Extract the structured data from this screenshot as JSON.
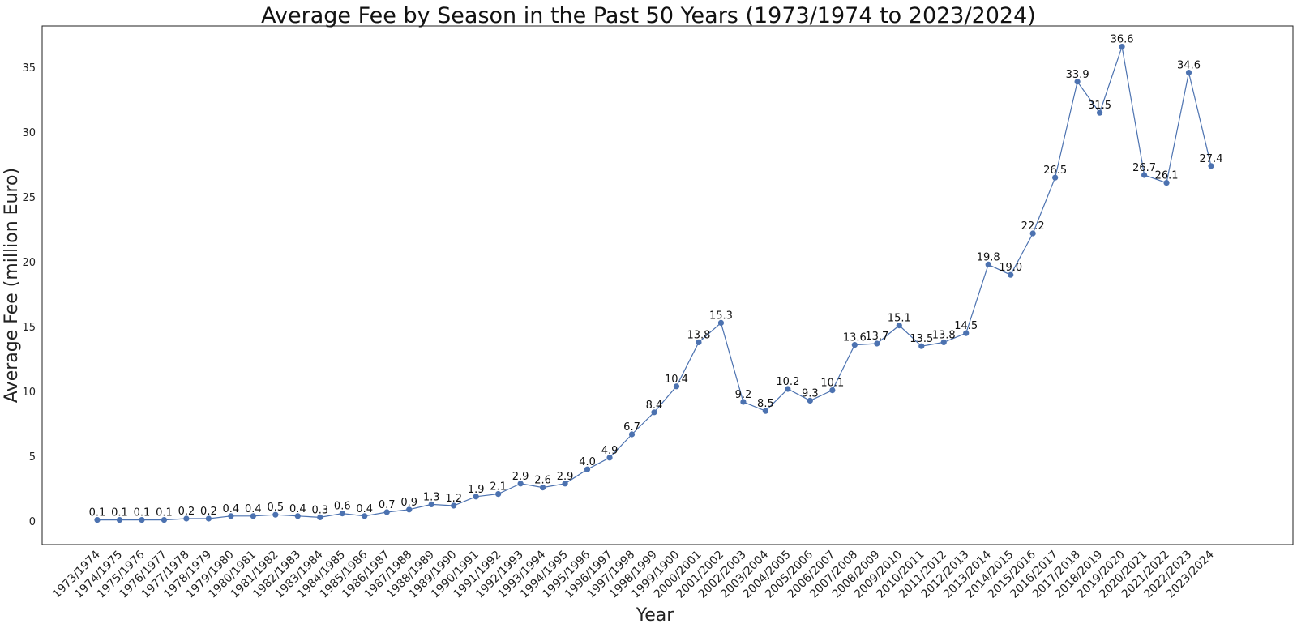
{
  "chart_data": {
    "type": "line",
    "title": "Average Fee by Season in the Past 50 Years (1973/1974 to 2023/2024)",
    "xlabel": "Year",
    "ylabel": "Average Fee (million Euro)",
    "ylim": [
      -1.8,
      38.2
    ],
    "yticks": [
      0,
      5,
      10,
      15,
      20,
      25,
      30,
      35
    ],
    "grid": false,
    "line_color": "#4C72B0",
    "categories": [
      "1973/1974",
      "1974/1975",
      "1975/1976",
      "1976/1977",
      "1977/1978",
      "1978/1979",
      "1979/1980",
      "1980/1981",
      "1981/1982",
      "1982/1983",
      "1983/1984",
      "1984/1985",
      "1985/1986",
      "1986/1987",
      "1987/1988",
      "1988/1989",
      "1989/1990",
      "1990/1991",
      "1991/1992",
      "1992/1993",
      "1993/1994",
      "1994/1995",
      "1995/1996",
      "1996/1997",
      "1997/1998",
      "1998/1999",
      "1999/1900",
      "2000/2001",
      "2001/2002",
      "2002/2003",
      "2003/2004",
      "2004/2005",
      "2005/2006",
      "2006/2007",
      "2007/2008",
      "2008/2009",
      "2009/2010",
      "2010/2011",
      "2011/2012",
      "2012/2013",
      "2013/2014",
      "2014/2015",
      "2015/2016",
      "2016/2017",
      "2017/2018",
      "2018/2019",
      "2019/2020",
      "2020/2021",
      "2021/2022",
      "2022/2023",
      "2023/2024"
    ],
    "values": [
      0.1,
      0.1,
      0.1,
      0.1,
      0.2,
      0.2,
      0.4,
      0.4,
      0.5,
      0.4,
      0.3,
      0.6,
      0.4,
      0.7,
      0.9,
      1.3,
      1.2,
      1.9,
      2.1,
      2.9,
      2.6,
      2.9,
      4.0,
      4.9,
      6.7,
      8.4,
      10.4,
      13.8,
      15.3,
      9.2,
      8.5,
      10.2,
      9.3,
      10.1,
      13.6,
      13.7,
      15.1,
      13.5,
      13.8,
      14.5,
      19.8,
      19.0,
      22.2,
      26.5,
      33.9,
      31.5,
      36.6,
      26.7,
      26.1,
      34.6,
      27.4
    ],
    "data_labels": [
      "0.1",
      "0.1",
      "0.1",
      "0.1",
      "0.2",
      "0.2",
      "0.4",
      "0.4",
      "0.5",
      "0.4",
      "0.3",
      "0.6",
      "0.4",
      "0.7",
      "0.9",
      "1.3",
      "1.2",
      "1.9",
      "2.1",
      "2.9",
      "2.6",
      "2.9",
      "4.0",
      "4.9",
      "6.7",
      "8.4",
      "10.4",
      "13.8",
      "15.3",
      "9.2",
      "8.5",
      "10.2",
      "9.3",
      "10.1",
      "13.6",
      "13.7",
      "15.1",
      "13.5",
      "13.8",
      "14.5",
      "19.8",
      "19.0",
      "22.2",
      "26.5",
      "33.9",
      "31.5",
      "36.6",
      "26.7",
      "26.1",
      "34.6",
      "27.4"
    ]
  }
}
